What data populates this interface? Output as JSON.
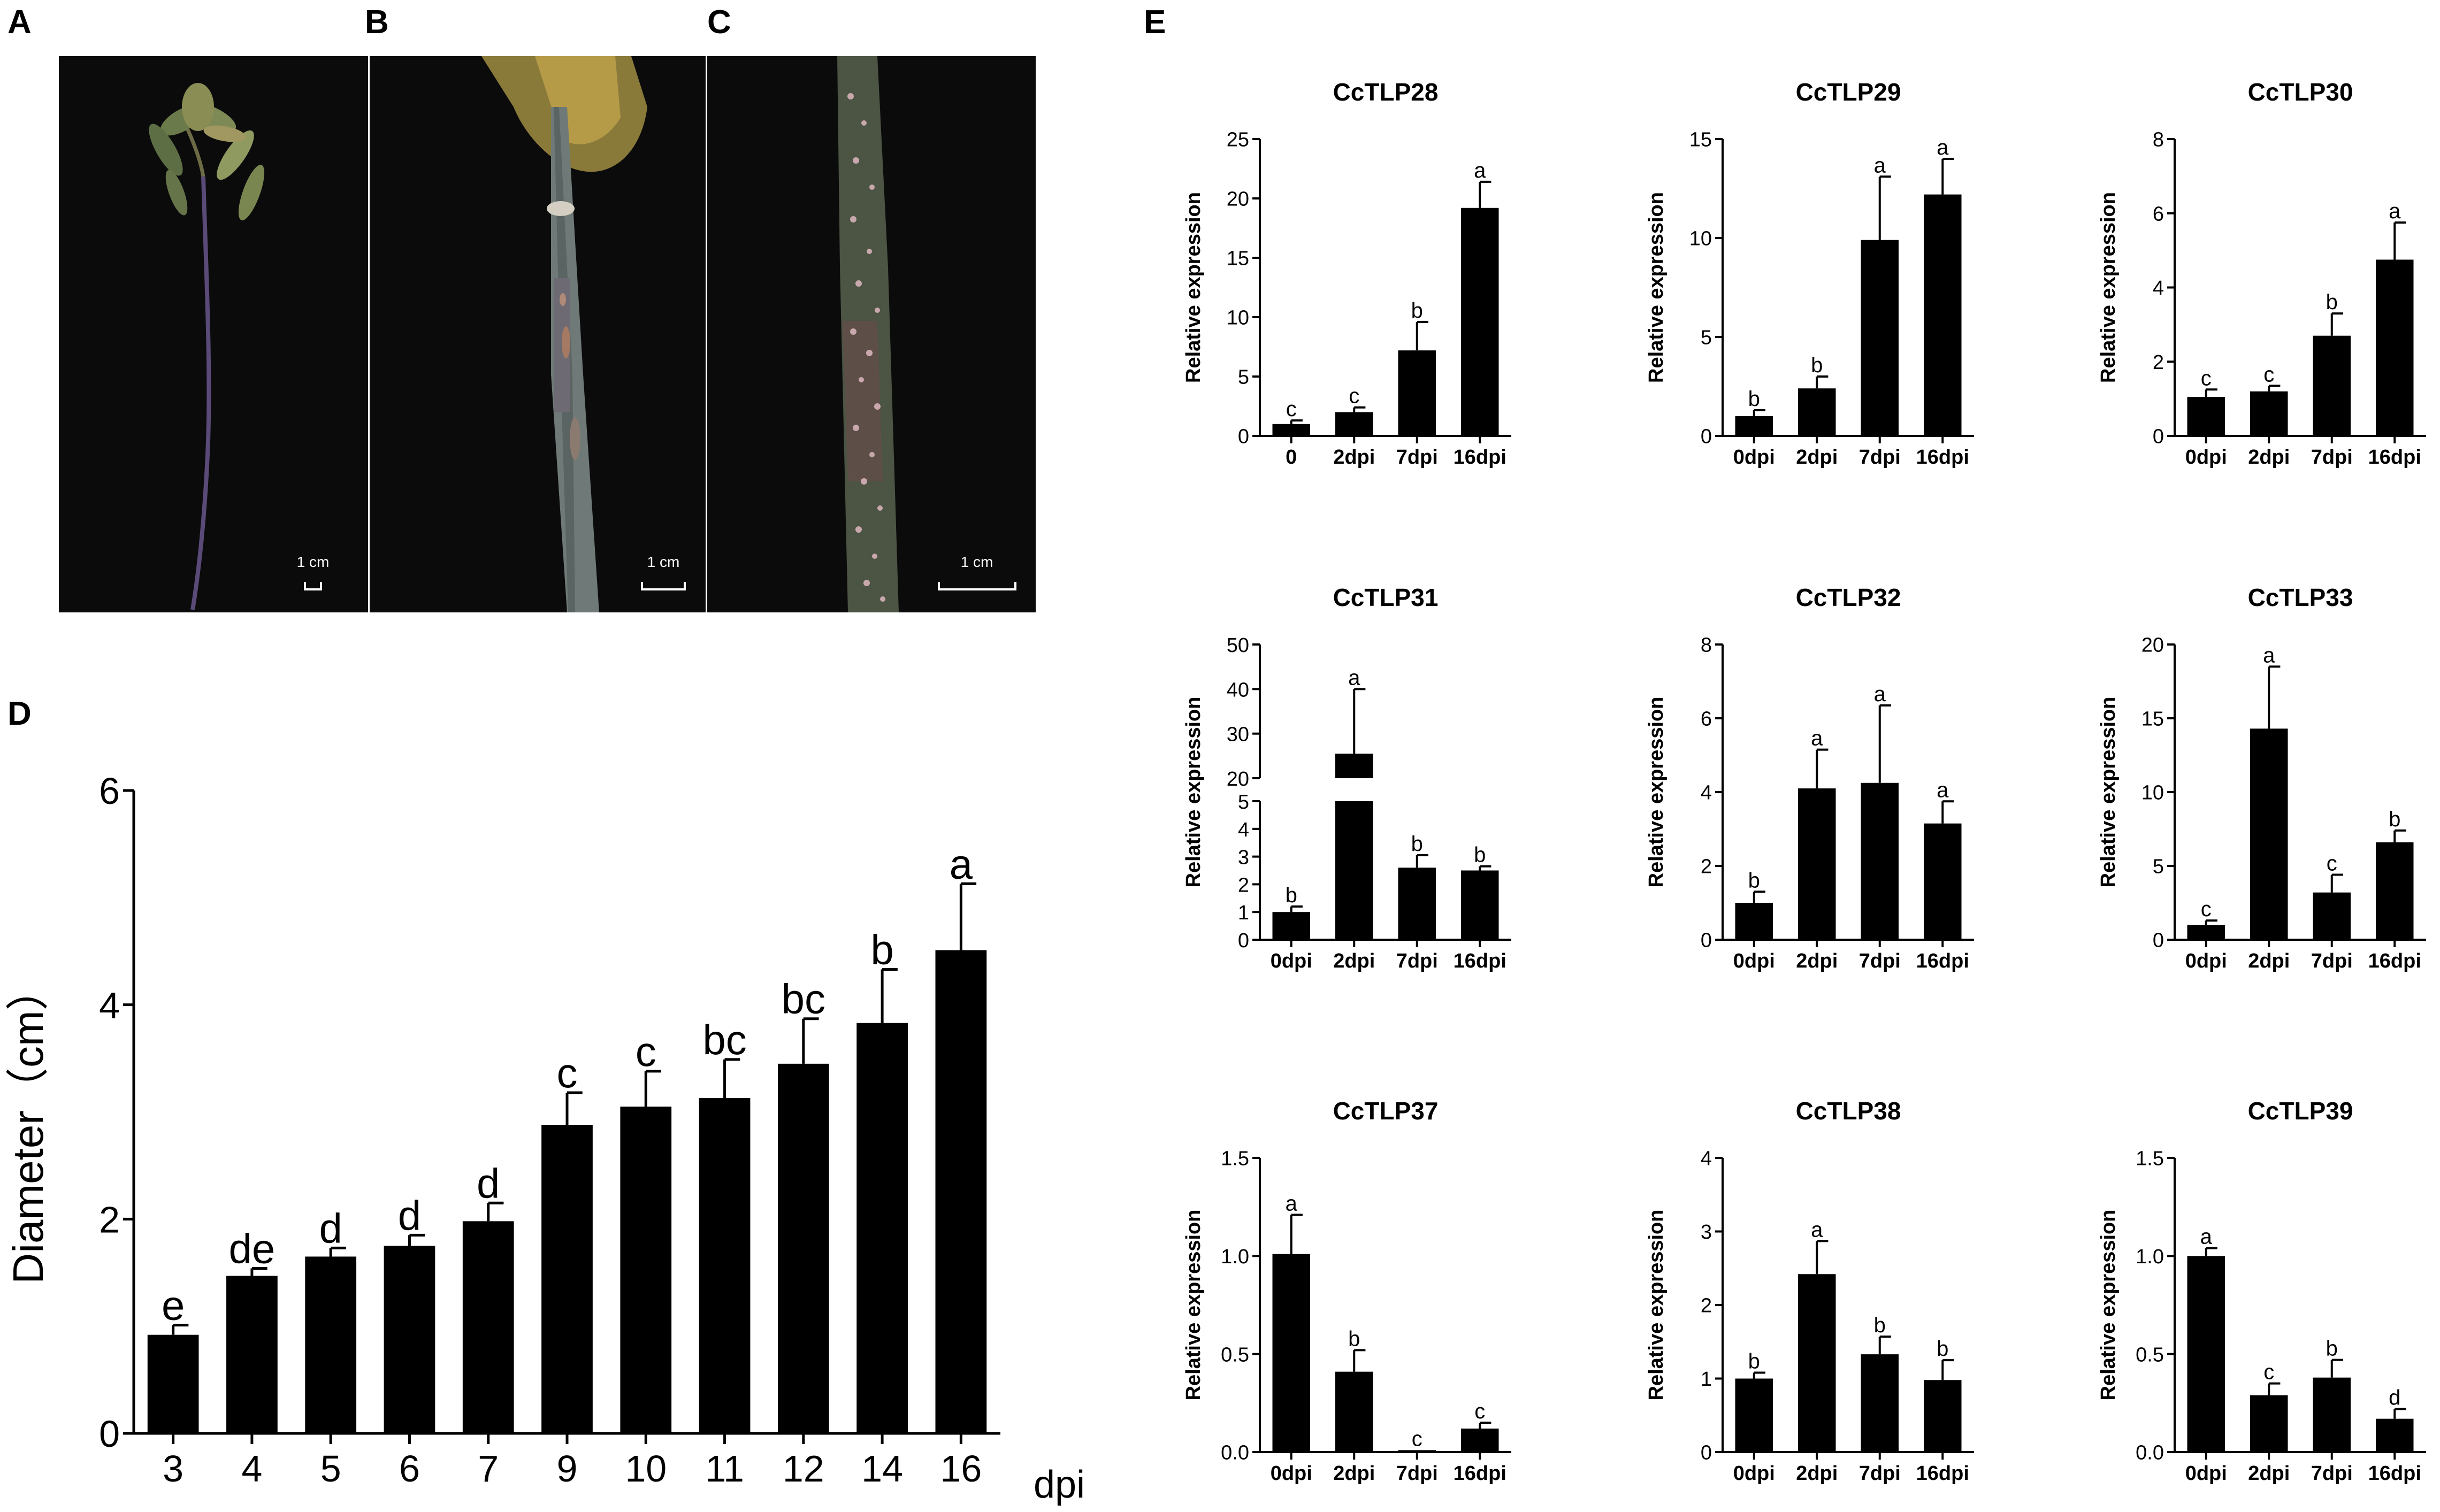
{
  "panels": {
    "A": {
      "letter": "A",
      "scale_label": "1 cm"
    },
    "B": {
      "letter": "B",
      "scale_label": "1 cm"
    },
    "C": {
      "letter": "C",
      "scale_label": "1 cm"
    },
    "D": {
      "letter": "D"
    },
    "E": {
      "letter": "E"
    }
  },
  "chart_data": [
    {
      "id": "D",
      "type": "bar",
      "title": "",
      "xlabel": "dpi",
      "ylabel": "Diameter（cm）",
      "ylim": [
        0,
        6
      ],
      "yticks": [
        "0",
        "2",
        "4",
        "6"
      ],
      "categories": [
        "3",
        "4",
        "5",
        "6",
        "7",
        "9",
        "10",
        "11",
        "12",
        "14",
        "16"
      ],
      "values": [
        0.92,
        1.47,
        1.65,
        1.75,
        1.98,
        2.88,
        3.05,
        3.13,
        3.45,
        3.83,
        4.51
      ],
      "errors": [
        0.09,
        0.07,
        0.08,
        0.1,
        0.17,
        0.3,
        0.33,
        0.36,
        0.42,
        0.5,
        0.62
      ],
      "letters": [
        "e",
        "de",
        "d",
        "d",
        "d",
        "c",
        "c",
        "bc",
        "bc",
        "b",
        "a"
      ]
    },
    {
      "id": "E1",
      "type": "bar",
      "title": "CcTLP28",
      "ylabel": "Relative expression",
      "ylim": [
        0,
        25
      ],
      "yticks": [
        "0",
        "5",
        "10",
        "15",
        "20",
        "25"
      ],
      "categories": [
        "0",
        "2dpi",
        "7dpi",
        "16dpi"
      ],
      "values": [
        1.0,
        2.0,
        7.2,
        19.2
      ],
      "errors": [
        0.3,
        0.4,
        2.4,
        2.2
      ],
      "letters": [
        "c",
        "c",
        "b",
        "a"
      ]
    },
    {
      "id": "E2",
      "type": "bar",
      "title": "CcTLP29",
      "ylabel": "Relative expression",
      "ylim": [
        0,
        15
      ],
      "yticks": [
        "0",
        "5",
        "10",
        "15"
      ],
      "categories": [
        "0dpi",
        "2dpi",
        "7dpi",
        "16dpi"
      ],
      "values": [
        1.0,
        2.4,
        9.9,
        12.2
      ],
      "errors": [
        0.3,
        0.6,
        3.2,
        1.8
      ],
      "letters": [
        "b",
        "b",
        "a",
        "a"
      ]
    },
    {
      "id": "E3",
      "type": "bar",
      "title": "CcTLP30",
      "ylabel": "Relative expression",
      "ylim": [
        0,
        8
      ],
      "yticks": [
        "0",
        "2",
        "4",
        "6",
        "8"
      ],
      "categories": [
        "0dpi",
        "2dpi",
        "7dpi",
        "16dpi"
      ],
      "values": [
        1.05,
        1.2,
        2.7,
        4.75
      ],
      "errors": [
        0.2,
        0.15,
        0.6,
        1.0
      ],
      "letters": [
        "c",
        "c",
        "b",
        "a"
      ]
    },
    {
      "id": "E4",
      "type": "bar",
      "title": "CcTLP31",
      "ylabel": "Relative expression",
      "broken_axis": true,
      "lower_ylim": [
        0,
        5
      ],
      "lower_yticks": [
        "0",
        "1",
        "2",
        "3",
        "4",
        "5"
      ],
      "upper_ylim": [
        20,
        50
      ],
      "upper_yticks": [
        "20",
        "30",
        "40",
        "50"
      ],
      "categories": [
        "0dpi",
        "2dpi",
        "7dpi",
        "16dpi"
      ],
      "values": [
        1.0,
        25.5,
        2.6,
        2.5
      ],
      "errors": [
        0.2,
        14.5,
        0.45,
        0.15
      ],
      "letters": [
        "b",
        "a",
        "b",
        "b"
      ]
    },
    {
      "id": "E5",
      "type": "bar",
      "title": "CcTLP32",
      "ylabel": "Relative expression",
      "ylim": [
        0,
        8
      ],
      "yticks": [
        "0",
        "2",
        "4",
        "6",
        "8"
      ],
      "categories": [
        "0dpi",
        "2dpi",
        "7dpi",
        "16dpi"
      ],
      "values": [
        1.0,
        4.1,
        4.25,
        3.15
      ],
      "errors": [
        0.3,
        1.05,
        2.1,
        0.6
      ],
      "letters": [
        "b",
        "a",
        "a",
        "a"
      ]
    },
    {
      "id": "E6",
      "type": "bar",
      "title": "CcTLP33",
      "ylabel": "Relative expression",
      "ylim": [
        0,
        20
      ],
      "yticks": [
        "0",
        "5",
        "10",
        "15",
        "20"
      ],
      "categories": [
        "0dpi",
        "2dpi",
        "7dpi",
        "16dpi"
      ],
      "values": [
        1.0,
        14.3,
        3.2,
        6.6
      ],
      "errors": [
        0.3,
        4.2,
        1.2,
        0.8
      ],
      "letters": [
        "c",
        "a",
        "c",
        "b"
      ]
    },
    {
      "id": "E7",
      "type": "bar",
      "title": "CcTLP37",
      "ylabel": "Relative expression",
      "ylim": [
        0,
        1.5
      ],
      "yticks": [
        "0.0",
        "0.5",
        "1.0",
        "1.5"
      ],
      "categories": [
        "0dpi",
        "2dpi",
        "7dpi",
        "16dpi"
      ],
      "values": [
        1.01,
        0.41,
        0.01,
        0.12
      ],
      "errors": [
        0.2,
        0.11,
        0.0,
        0.03
      ],
      "letters": [
        "a",
        "b",
        "c",
        "c"
      ]
    },
    {
      "id": "E8",
      "type": "bar",
      "title": "CcTLP38",
      "ylabel": "Relative expression",
      "ylim": [
        0,
        4
      ],
      "yticks": [
        "0",
        "1",
        "2",
        "3",
        "4"
      ],
      "categories": [
        "0dpi",
        "2dpi",
        "7dpi",
        "16dpi"
      ],
      "values": [
        1.0,
        2.42,
        1.33,
        0.98
      ],
      "errors": [
        0.08,
        0.45,
        0.24,
        0.27
      ],
      "letters": [
        "b",
        "a",
        "b",
        "b"
      ]
    },
    {
      "id": "E9",
      "type": "bar",
      "title": "CcTLP39",
      "ylabel": "Relative expression",
      "ylim": [
        0,
        1.5
      ],
      "yticks": [
        "0.0",
        "0.5",
        "1.0",
        "1.5"
      ],
      "categories": [
        "0dpi",
        "2dpi",
        "7dpi",
        "16dpi"
      ],
      "values": [
        1.0,
        0.29,
        0.38,
        0.17
      ],
      "errors": [
        0.04,
        0.06,
        0.09,
        0.05
      ],
      "letters": [
        "a",
        "c",
        "b",
        "d"
      ]
    }
  ]
}
